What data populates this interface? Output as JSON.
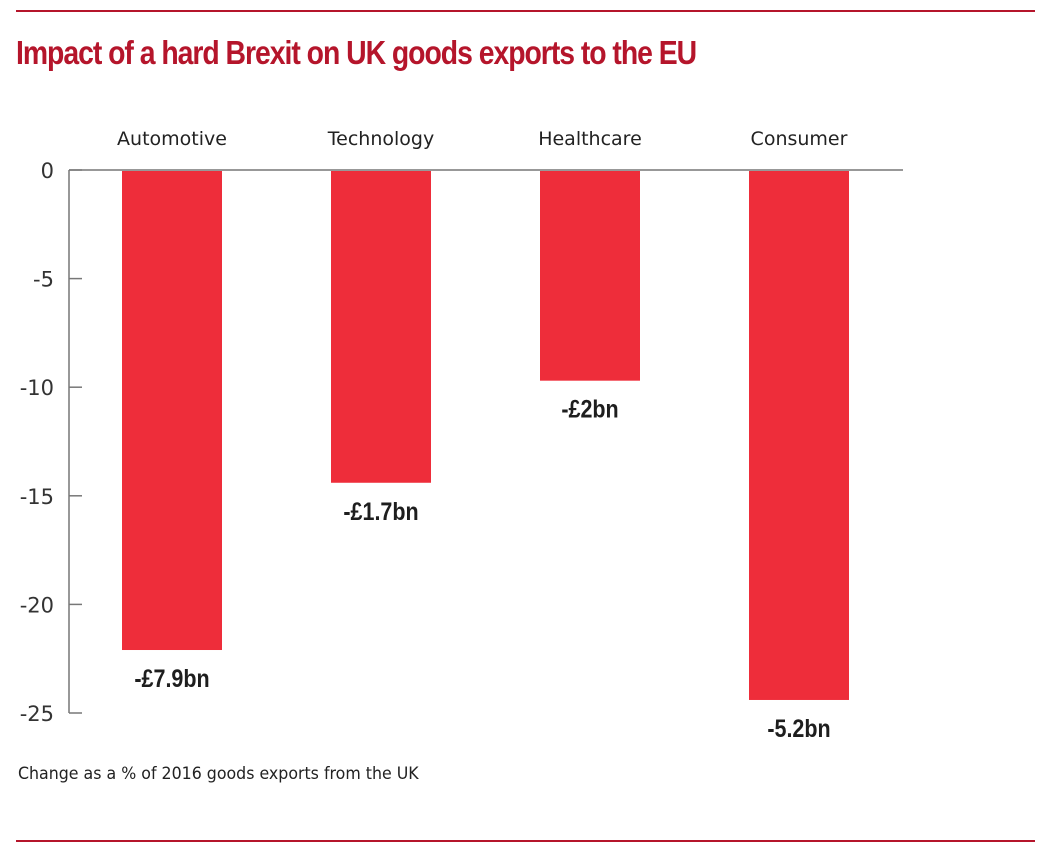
{
  "title": "Impact of a hard Brexit on UK goods exports to the EU",
  "caption": "Change as a % of 2016 goods exports from the UK",
  "colors": {
    "accent": "#b5152b",
    "bar": "#ee2d3a",
    "axis": "#777777"
  },
  "chart_data": {
    "type": "bar",
    "title": "Impact of a hard Brexit on UK goods exports to the EU",
    "xlabel": "",
    "ylabel": "Change as a % of 2016 goods exports from the UK",
    "categories": [
      "Automotive",
      "Technology",
      "Healthcare",
      "Consumer"
    ],
    "values": [
      -22.1,
      -14.4,
      -9.7,
      -24.4
    ],
    "data_labels": [
      "-£7.9bn",
      "-£1.7bn",
      "-£2bn",
      "-5.2bn"
    ],
    "yticks": [
      0,
      -5,
      -10,
      -15,
      -20,
      -25
    ],
    "ylim": [
      -25,
      0
    ],
    "category_axis_position": "top",
    "grid": false,
    "legend": "none"
  }
}
